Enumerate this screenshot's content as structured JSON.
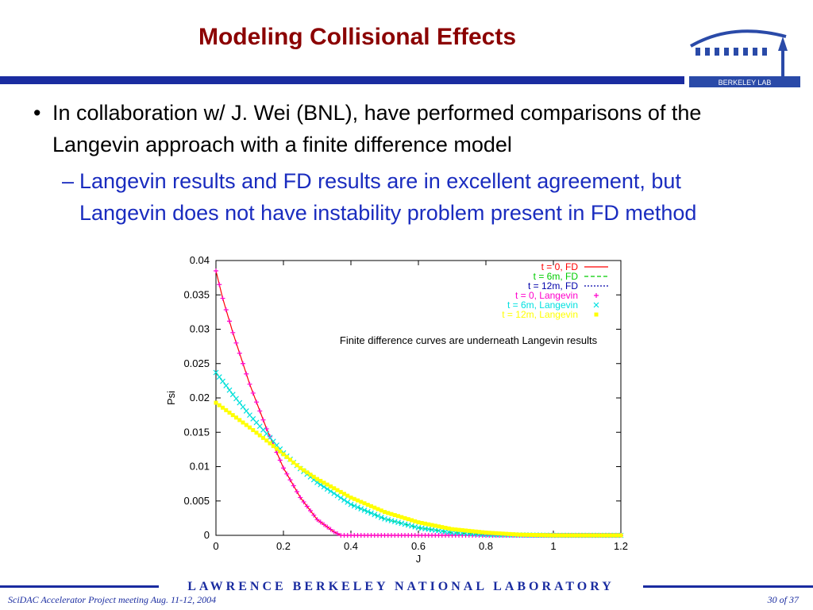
{
  "slide": {
    "title": "Modeling Collisional Effects",
    "bullet1": "In collaboration w/ J. Wei (BNL), have performed comparisons of the Langevin approach with a finite difference model",
    "bullet1_marker": "•",
    "bullet2": "Langevin results and FD results are in excellent agreement, but Langevin does not have instability problem present in FD method",
    "bullet2_marker": "–",
    "logo_text": "BERKELEY LAB",
    "footer_left": "SciDAC Accelerator Project meeting Aug. 11-12, 2004",
    "footer_right": "30 of 37",
    "footer_band_text": "LAWRENCE BERKELEY NATIONAL LABORATORY"
  },
  "colors": {
    "title": "#8b0000",
    "rule": "#1a2ca0",
    "bullet2": "#1a2cbf",
    "t0": "#ff0000",
    "t6": "#00cc00",
    "t12": "#0000aa",
    "t0_lang": "#ff00cc",
    "t6_lang": "#00e0e0",
    "t12_lang": "#ffff00"
  },
  "chart_data": {
    "type": "line",
    "xlabel": "J",
    "ylabel": "Psi",
    "xlim": [
      0,
      1.2
    ],
    "ylim": [
      0,
      0.04
    ],
    "xticks": [
      "0",
      "0.2",
      "0.4",
      "0.6",
      "0.8",
      "1",
      "1.2"
    ],
    "yticks": [
      "0",
      "0.005",
      "0.01",
      "0.015",
      "0.02",
      "0.025",
      "0.03",
      "0.035",
      "0.04"
    ],
    "annotation": "Finite difference curves are underneath Langevin results",
    "legend_position": "top-right",
    "series": [
      {
        "name": "t = 0, FD",
        "style": "solid",
        "color": "#ff0000",
        "x": [
          0,
          0.02,
          0.05,
          0.1,
          0.15,
          0.2,
          0.25,
          0.3,
          0.35,
          0.37,
          0.4,
          0.6,
          0.8,
          1.0,
          1.2
        ],
        "y": [
          0.0385,
          0.0345,
          0.0295,
          0.022,
          0.0155,
          0.0098,
          0.0055,
          0.0023,
          0.0005,
          0,
          0,
          0,
          0,
          0,
          0
        ]
      },
      {
        "name": "t = 6m, FD",
        "style": "dashed",
        "color": "#00cc00",
        "x": [
          0,
          0.05,
          0.1,
          0.15,
          0.2,
          0.25,
          0.3,
          0.4,
          0.5,
          0.6,
          0.7,
          0.8,
          1.0,
          1.2
        ],
        "y": [
          0.0237,
          0.0205,
          0.0175,
          0.0148,
          0.012,
          0.0097,
          0.0077,
          0.0045,
          0.0024,
          0.0011,
          0.0004,
          0.0001,
          0,
          0
        ]
      },
      {
        "name": "t = 12m, FD",
        "style": "dotted",
        "color": "#0000aa",
        "x": [
          0,
          0.05,
          0.1,
          0.15,
          0.2,
          0.25,
          0.3,
          0.4,
          0.5,
          0.6,
          0.7,
          0.8,
          0.9,
          1.0,
          1.2
        ],
        "y": [
          0.0193,
          0.0175,
          0.0157,
          0.0138,
          0.0118,
          0.0098,
          0.0082,
          0.0055,
          0.0034,
          0.0019,
          0.0009,
          0.0004,
          0.0001,
          0,
          0
        ]
      },
      {
        "name": "t = 0, Langevin",
        "style": "plus",
        "color": "#ff00cc",
        "x": [
          0,
          0.02,
          0.05,
          0.1,
          0.15,
          0.2,
          0.25,
          0.3,
          0.35,
          0.37,
          0.4,
          0.6,
          0.8,
          1.0,
          1.2
        ],
        "y": [
          0.0385,
          0.0345,
          0.0295,
          0.022,
          0.0155,
          0.0098,
          0.0055,
          0.0023,
          0.0005,
          0,
          0,
          0,
          0,
          0,
          0
        ]
      },
      {
        "name": "t = 6m, Langevin",
        "style": "cross",
        "color": "#00e0e0",
        "x": [
          0,
          0.05,
          0.1,
          0.15,
          0.2,
          0.25,
          0.3,
          0.4,
          0.5,
          0.6,
          0.7,
          0.8,
          1.0,
          1.2
        ],
        "y": [
          0.0237,
          0.0205,
          0.0175,
          0.0148,
          0.012,
          0.0097,
          0.0077,
          0.0045,
          0.0024,
          0.0011,
          0.0004,
          0.0001,
          0,
          0
        ]
      },
      {
        "name": "t = 12m, Langevin",
        "style": "square",
        "color": "#ffff00",
        "x": [
          0,
          0.05,
          0.1,
          0.15,
          0.2,
          0.25,
          0.3,
          0.4,
          0.5,
          0.6,
          0.7,
          0.8,
          0.9,
          1.0,
          1.2
        ],
        "y": [
          0.0193,
          0.0175,
          0.0157,
          0.0138,
          0.0118,
          0.0098,
          0.0082,
          0.0055,
          0.0034,
          0.0019,
          0.0009,
          0.0004,
          0.0001,
          0,
          0
        ]
      }
    ]
  }
}
